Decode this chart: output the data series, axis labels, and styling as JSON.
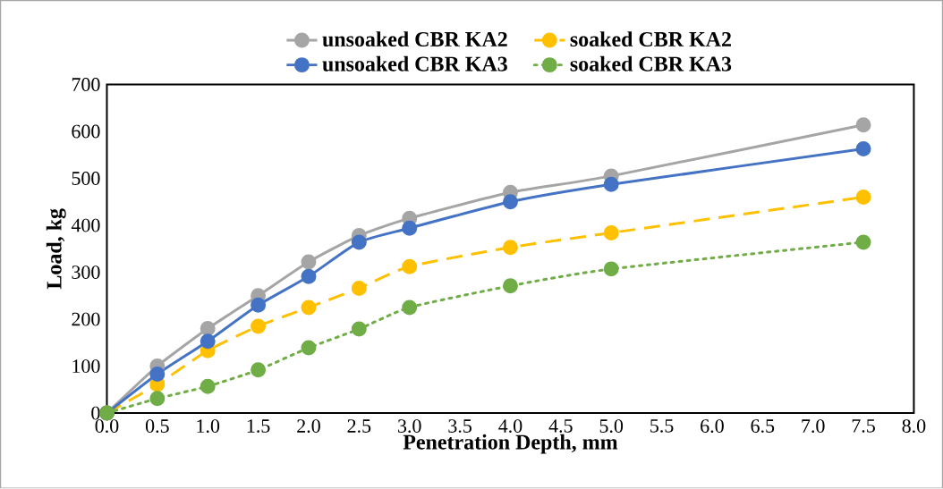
{
  "chart_data": {
    "type": "line",
    "xlabel": "Penetration Depth, mm",
    "ylabel": "Load, kg",
    "x": [
      0,
      0.5,
      1,
      1.5,
      2,
      2.5,
      3,
      4,
      5,
      7.5
    ],
    "series": [
      {
        "name": "unsoaked CBR KA2",
        "color": "#a5a5a5",
        "line_style": "solid",
        "values": [
          0,
          100,
          180,
          250,
          322,
          378,
          415,
          470,
          505,
          614
        ]
      },
      {
        "name": "soaked CBR KA2",
        "color": "#ffc000",
        "line_style": "dashed",
        "values": [
          0,
          61,
          133,
          185,
          225,
          266,
          312,
          353,
          384,
          460
        ]
      },
      {
        "name": "unsoaked CBR KA3",
        "color": "#4472c4",
        "line_style": "solid",
        "values": [
          0,
          83,
          153,
          230,
          291,
          364,
          394,
          450,
          487,
          563
        ]
      },
      {
        "name": "soaked CBR KA3",
        "color": "#70ad47",
        "line_style": "dotted",
        "values": [
          0,
          31,
          57,
          92,
          139,
          179,
          225,
          271,
          307,
          364
        ]
      }
    ],
    "marker": "circle",
    "legend": "top",
    "xlim": [
      0,
      8
    ],
    "xticks": [
      {
        "value": 0,
        "label": "0.0"
      },
      {
        "value": 0.5,
        "label": "0.5"
      },
      {
        "value": 1,
        "label": "1.0"
      },
      {
        "value": 1.5,
        "label": "1.5"
      },
      {
        "value": 2,
        "label": "2.0"
      },
      {
        "value": 2.5,
        "label": "2.5"
      },
      {
        "value": 3,
        "label": "3.0"
      },
      {
        "value": 3.5,
        "label": "3.5"
      },
      {
        "value": 4,
        "label": "4.0"
      },
      {
        "value": 4.5,
        "label": "4.5"
      },
      {
        "value": 5,
        "label": "5.0"
      },
      {
        "value": 5.5,
        "label": "5.5"
      },
      {
        "value": 6,
        "label": "6.0"
      },
      {
        "value": 6.5,
        "label": "6.5"
      },
      {
        "value": 7,
        "label": "7.0"
      },
      {
        "value": 7.5,
        "label": "7.5"
      },
      {
        "value": 8,
        "label": "8.0"
      }
    ],
    "ylim": [
      0,
      700
    ],
    "yticks": [
      0,
      100,
      200,
      300,
      400,
      500,
      600,
      700
    ]
  }
}
